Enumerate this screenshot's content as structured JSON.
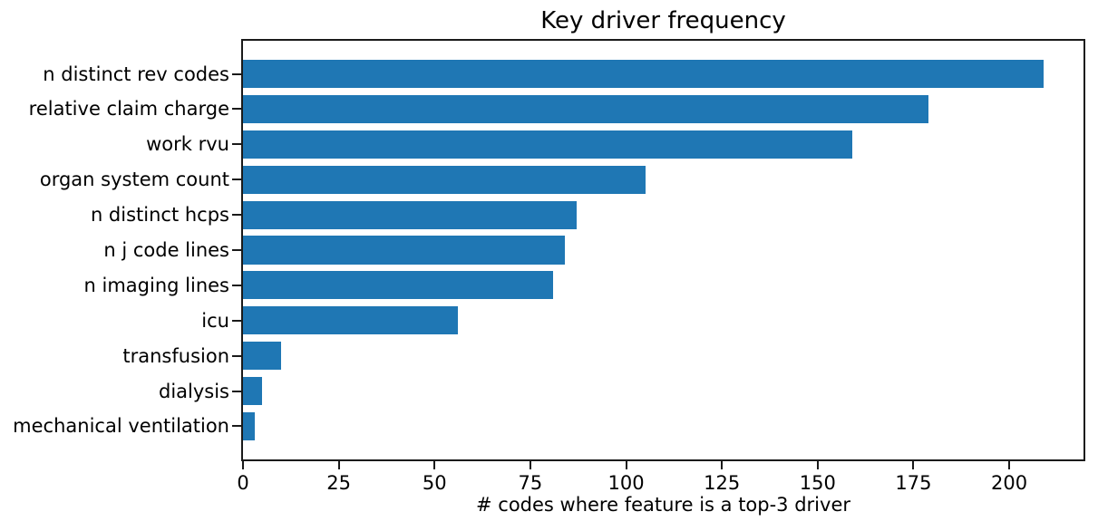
{
  "chart_data": {
    "type": "bar",
    "orientation": "horizontal",
    "title": "Key driver frequency",
    "xlabel": "# codes where feature is a top-3 driver",
    "ylabel": "",
    "categories": [
      "n distinct rev codes",
      "relative claim charge",
      "work rvu",
      "organ system count",
      "n distinct hcps",
      "n j code lines",
      "n imaging lines",
      "icu",
      "transfusion",
      "dialysis",
      "mechanical ventilation"
    ],
    "values": [
      209,
      179,
      159,
      105,
      87,
      84,
      81,
      56,
      10,
      5,
      3
    ],
    "xticks": [
      0,
      25,
      50,
      75,
      100,
      125,
      150,
      175,
      200
    ],
    "xlim": [
      0,
      219.4
    ],
    "bar_color": "#1f77b4",
    "axis_color": "#1a1a1a",
    "text_color": "#000000",
    "background_color": "#ffffff",
    "grid": false,
    "legend": null,
    "bar_height_fraction": 0.8
  }
}
